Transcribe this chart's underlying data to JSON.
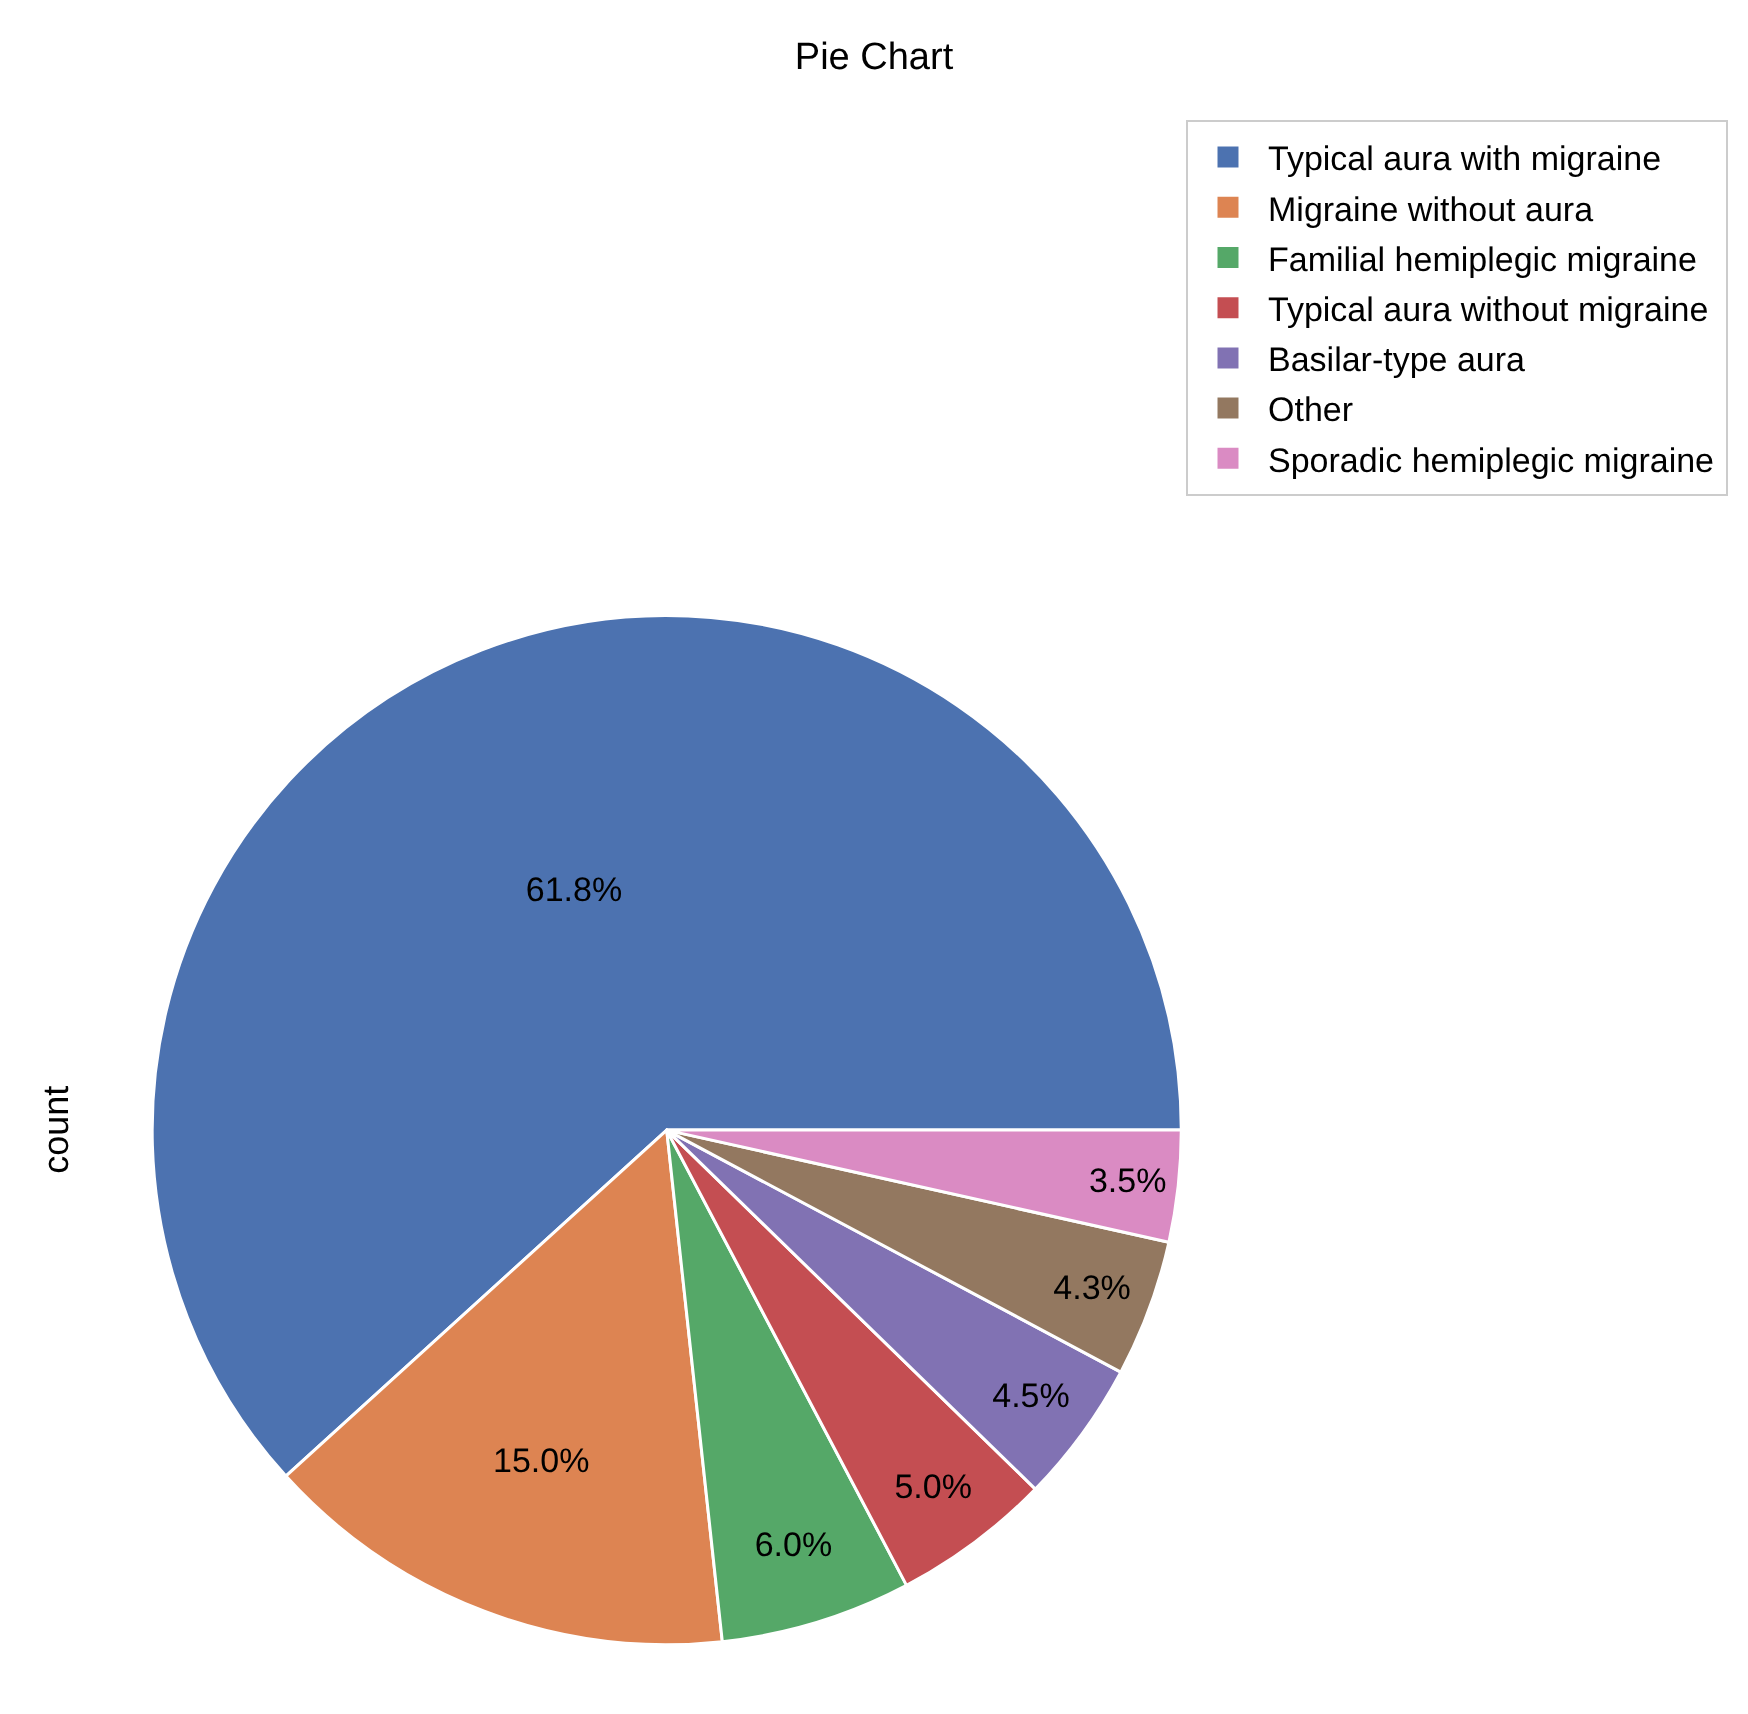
{
  "chart_data": {
    "type": "pie",
    "title": "Pie Chart",
    "ylabel": "count",
    "categories": [
      "Typical aura with migraine",
      "Migraine without aura",
      "Familial hemiplegic migraine",
      "Typical aura without migraine",
      "Basilar-type aura",
      "Other",
      "Sporadic hemiplegic migraine"
    ],
    "values": [
      61.8,
      15.0,
      6.0,
      5.0,
      4.5,
      4.3,
      3.5
    ],
    "value_labels": [
      "61.8%",
      "15.0%",
      "6.0%",
      "5.0%",
      "4.5%",
      "4.3%",
      "3.5%"
    ],
    "colors": [
      "#4c72b0",
      "#dd8452",
      "#55a868",
      "#c44e52",
      "#8172b3",
      "#937860",
      "#da8bc3"
    ],
    "legend": "top right"
  }
}
